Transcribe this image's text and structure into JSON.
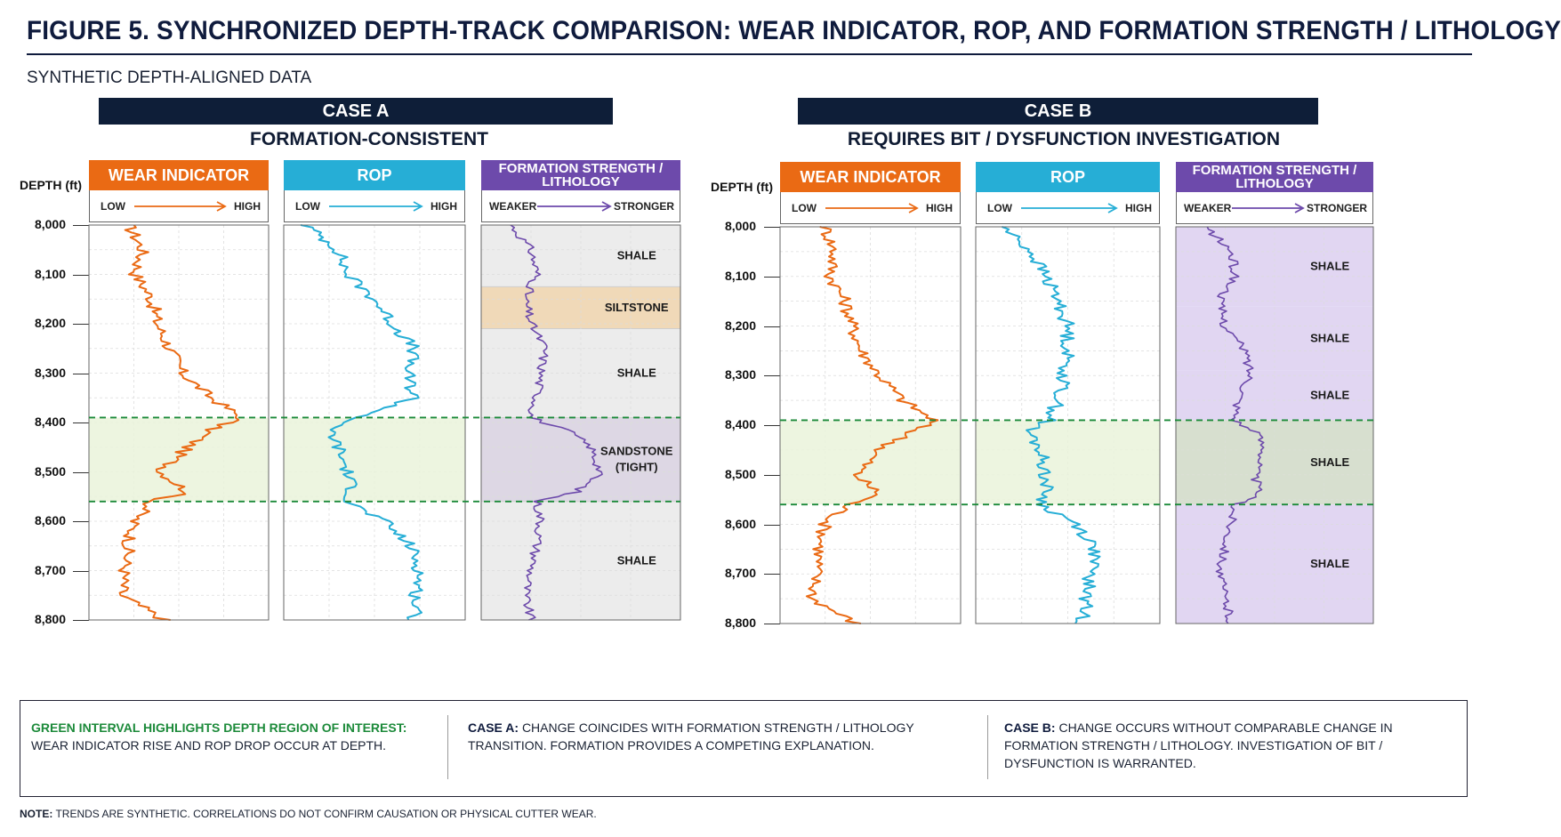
{
  "figure": {
    "title": "FIGURE 5.   SYNCHRONIZED DEPTH-TRACK COMPARISON: WEAR INDICATOR, ROP, AND FORMATION STRENGTH / LITHOLOGY",
    "subtitle": "SYNTHETIC DEPTH-ALIGNED DATA"
  },
  "colors": {
    "navy": "#0e1e38",
    "wear": "#ea6a14",
    "rop": "#26aed6",
    "formation": "#6d4aab",
    "interest": "#1c8a3a"
  },
  "tracks": {
    "depth_header": "DEPTH (ft)",
    "wear": {
      "title": "WEAR INDICATOR",
      "low": "LOW",
      "high": "HIGH"
    },
    "rop": {
      "title": "ROP",
      "low": "LOW",
      "high": "HIGH"
    },
    "formation": {
      "title": "FORMATION STRENGTH / LITHOLOGY",
      "low": "WEAKER",
      "high": "STRONGER"
    }
  },
  "chart_data": [
    {
      "type": "line",
      "case": "CASE A",
      "subtitle": "FORMATION-CONSISTENT",
      "depth_unit": "ft",
      "depth_range": [
        8000,
        8800
      ],
      "depth_ticks": [
        "8,000",
        "8,100",
        "8,200",
        "8,300",
        "8,400",
        "8,500",
        "8,600",
        "8,700",
        "8,800"
      ],
      "interval_of_interest": [
        8390,
        8560
      ],
      "series": [
        {
          "name": "WEAR INDICATOR",
          "depth": [
            8000,
            8050,
            8100,
            8150,
            8200,
            8250,
            8300,
            8350,
            8390,
            8410,
            8450,
            8500,
            8540,
            8560,
            8600,
            8650,
            8700,
            8750,
            8800
          ],
          "values": [
            0.22,
            0.3,
            0.26,
            0.35,
            0.38,
            0.45,
            0.52,
            0.68,
            0.85,
            0.7,
            0.55,
            0.4,
            0.55,
            0.35,
            0.25,
            0.22,
            0.2,
            0.18,
            0.42
          ]
        },
        {
          "name": "ROP",
          "depth": [
            8000,
            8050,
            8100,
            8150,
            8200,
            8250,
            8300,
            8350,
            8390,
            8410,
            8450,
            8500,
            8540,
            8560,
            8600,
            8650,
            8700,
            8750,
            8800
          ],
          "values": [
            0.12,
            0.3,
            0.35,
            0.5,
            0.6,
            0.72,
            0.68,
            0.72,
            0.42,
            0.25,
            0.3,
            0.35,
            0.38,
            0.35,
            0.55,
            0.7,
            0.75,
            0.73,
            0.72
          ]
        },
        {
          "name": "FORMATION STRENGTH / LITHOLOGY",
          "depth": [
            8000,
            8050,
            8100,
            8150,
            8200,
            8250,
            8300,
            8350,
            8390,
            8420,
            8450,
            8500,
            8540,
            8560,
            8600,
            8650,
            8700,
            8750,
            8800
          ],
          "values": [
            0.15,
            0.25,
            0.28,
            0.22,
            0.25,
            0.32,
            0.3,
            0.28,
            0.25,
            0.45,
            0.55,
            0.6,
            0.48,
            0.28,
            0.3,
            0.28,
            0.25,
            0.22,
            0.25
          ]
        }
      ],
      "lithology": [
        {
          "label": "SHALE",
          "top": 8000,
          "bottom": 8125,
          "fill": "#ececec"
        },
        {
          "label": "SILTSTONE",
          "top": 8125,
          "bottom": 8210,
          "fill": "#f0d9b8"
        },
        {
          "label": "SHALE",
          "top": 8210,
          "bottom": 8390,
          "fill": "#ececec"
        },
        {
          "label": "SANDSTONE\n(TIGHT)",
          "top": 8390,
          "bottom": 8560,
          "fill": "#dfd2ee"
        },
        {
          "label": "SHALE",
          "top": 8560,
          "bottom": 8800,
          "fill": "#ececec"
        }
      ]
    },
    {
      "type": "line",
      "case": "CASE B",
      "subtitle": "REQUIRES BIT / DYSFUNCTION INVESTIGATION",
      "depth_unit": "ft",
      "depth_range": [
        8000,
        8800
      ],
      "depth_ticks": [
        "8,000",
        "8,100",
        "8,200",
        "8,300",
        "8,400",
        "8,500",
        "8,600",
        "8,700",
        "8,800"
      ],
      "interval_of_interest": [
        8390,
        8560
      ],
      "series": [
        {
          "name": "WEAR INDICATOR",
          "depth": [
            8000,
            8050,
            8100,
            8150,
            8200,
            8250,
            8300,
            8350,
            8390,
            8410,
            8450,
            8500,
            8540,
            8560,
            8600,
            8650,
            8700,
            8750,
            8800
          ],
          "values": [
            0.25,
            0.3,
            0.28,
            0.36,
            0.4,
            0.45,
            0.55,
            0.68,
            0.85,
            0.75,
            0.55,
            0.42,
            0.55,
            0.38,
            0.25,
            0.22,
            0.2,
            0.18,
            0.42
          ]
        },
        {
          "name": "ROP",
          "depth": [
            8000,
            8050,
            8100,
            8150,
            8200,
            8250,
            8300,
            8350,
            8390,
            8410,
            8450,
            8500,
            8540,
            8560,
            8600,
            8650,
            8700,
            8750,
            8800
          ],
          "values": [
            0.15,
            0.3,
            0.38,
            0.45,
            0.5,
            0.5,
            0.48,
            0.45,
            0.4,
            0.28,
            0.35,
            0.38,
            0.38,
            0.35,
            0.55,
            0.65,
            0.62,
            0.6,
            0.58
          ]
        },
        {
          "name": "FORMATION STRENGTH / LITHOLOGY",
          "depth": [
            8000,
            8050,
            8100,
            8150,
            8200,
            8250,
            8300,
            8350,
            8390,
            8420,
            8450,
            8500,
            8540,
            8560,
            8600,
            8650,
            8700,
            8750,
            8800
          ],
          "values": [
            0.15,
            0.28,
            0.3,
            0.22,
            0.25,
            0.35,
            0.38,
            0.32,
            0.3,
            0.42,
            0.45,
            0.4,
            0.42,
            0.3,
            0.28,
            0.25,
            0.22,
            0.25,
            0.28
          ]
        }
      ],
      "lithology": [
        {
          "label": "SHALE",
          "top": 8000,
          "bottom": 8160,
          "fill": "#e1d6f2"
        },
        {
          "label": "SHALE",
          "top": 8160,
          "bottom": 8290,
          "fill": "#e1d6f2"
        },
        {
          "label": "SHALE",
          "top": 8290,
          "bottom": 8390,
          "fill": "#e1d6f2"
        },
        {
          "label": "SHALE",
          "top": 8390,
          "bottom": 8560,
          "fill": "#d7dcd2"
        },
        {
          "label": "SHALE",
          "top": 8560,
          "bottom": 8800,
          "fill": "#e1d6f2"
        }
      ]
    }
  ],
  "legend": {
    "green_heading": "GREEN INTERVAL HIGHLIGHTS DEPTH REGION OF INTEREST:",
    "green_text": "WEAR INDICATOR RISE AND ROP DROP OCCUR AT DEPTH.",
    "case_a_heading": "CASE A:",
    "case_a_text": "CHANGE COINCIDES WITH FORMATION STRENGTH / LITHOLOGY TRANSITION. FORMATION PROVIDES A COMPETING EXPLANATION.",
    "case_b_heading": "CASE B:",
    "case_b_text": "CHANGE OCCURS WITHOUT COMPARABLE CHANGE IN FORMATION STRENGTH / LITHOLOGY. INVESTIGATION OF BIT / DYSFUNCTION IS WARRANTED."
  },
  "footnote": {
    "label": "NOTE:",
    "text": "TRENDS ARE SYNTHETIC. CORRELATIONS DO NOT CONFIRM CAUSATION OR PHYSICAL CUTTER WEAR."
  }
}
